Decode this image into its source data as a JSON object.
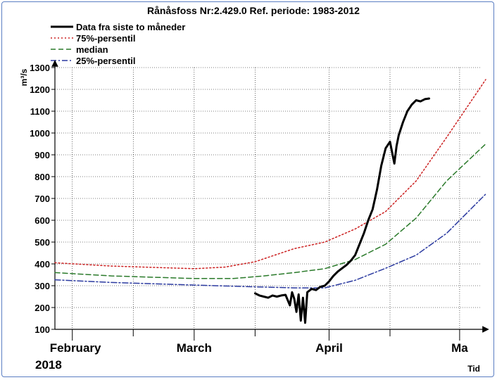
{
  "chart_data": {
    "type": "line",
    "title": "Rånåsfoss Nr:2.429.0 Ref. periode: 1983-2012",
    "ylabel": "m³/s",
    "xlabel": "Tid",
    "ylim": [
      100,
      1300
    ],
    "xlim": [
      "2018-01-28",
      "2018-05-07"
    ],
    "yticks": [
      "100",
      "200",
      "300",
      "400",
      "500",
      "600",
      "700",
      "800",
      "900",
      "1000",
      "1100",
      "1200",
      "1300"
    ],
    "month_labels": [
      {
        "label": "February",
        "date": "2018-02-01"
      },
      {
        "label": "March",
        "date": "2018-03-01"
      },
      {
        "label": "April",
        "date": "2018-04-01"
      },
      {
        "label": "Ma",
        "date": "2018-05-01"
      }
    ],
    "year_label": "2018",
    "legend": "top-left",
    "grid": true,
    "series": [
      {
        "name": "Data fra siste to måneder",
        "color": "#000000",
        "style": "solid",
        "points": [
          [
            "2018-03-15",
            265
          ],
          [
            "2018-03-16",
            255
          ],
          [
            "2018-03-17",
            250
          ],
          [
            "2018-03-18",
            245
          ],
          [
            "2018-03-19",
            255
          ],
          [
            "2018-03-20",
            250
          ],
          [
            "2018-03-21",
            255
          ],
          [
            "2018-03-22",
            258
          ],
          [
            "2018-03-23",
            210
          ],
          [
            "2018-03-23T12",
            270
          ],
          [
            "2018-03-24",
            240
          ],
          [
            "2018-03-24T12",
            180
          ],
          [
            "2018-03-25",
            260
          ],
          [
            "2018-03-25T12",
            140
          ],
          [
            "2018-03-26",
            245
          ],
          [
            "2018-03-26T12",
            130
          ],
          [
            "2018-03-27",
            270
          ],
          [
            "2018-03-28",
            285
          ],
          [
            "2018-03-29",
            280
          ],
          [
            "2018-03-30",
            295
          ],
          [
            "2018-03-31",
            300
          ],
          [
            "2018-04-01",
            320
          ],
          [
            "2018-04-02",
            345
          ],
          [
            "2018-04-03",
            365
          ],
          [
            "2018-04-04",
            380
          ],
          [
            "2018-04-05",
            395
          ],
          [
            "2018-04-06",
            415
          ],
          [
            "2018-04-07",
            440
          ],
          [
            "2018-04-08",
            490
          ],
          [
            "2018-04-09",
            540
          ],
          [
            "2018-04-10",
            600
          ],
          [
            "2018-04-11",
            650
          ],
          [
            "2018-04-12",
            740
          ],
          [
            "2018-04-13",
            850
          ],
          [
            "2018-04-14",
            930
          ],
          [
            "2018-04-15",
            960
          ],
          [
            "2018-04-16",
            860
          ],
          [
            "2018-04-16T12",
            940
          ],
          [
            "2018-04-17",
            990
          ],
          [
            "2018-04-18",
            1050
          ],
          [
            "2018-04-19",
            1100
          ],
          [
            "2018-04-20",
            1130
          ],
          [
            "2018-04-21",
            1150
          ],
          [
            "2018-04-22",
            1145
          ],
          [
            "2018-04-23",
            1155
          ],
          [
            "2018-04-24",
            1158
          ]
        ]
      },
      {
        "name": "75%-persentil",
        "color": "#cc2222",
        "style": "dotted",
        "points": [
          [
            "2018-01-28",
            405
          ],
          [
            "2018-02-10",
            390
          ],
          [
            "2018-03-01",
            378
          ],
          [
            "2018-03-08",
            385
          ],
          [
            "2018-03-15",
            410
          ],
          [
            "2018-03-24",
            470
          ],
          [
            "2018-03-31",
            500
          ],
          [
            "2018-04-07",
            560
          ],
          [
            "2018-04-14",
            640
          ],
          [
            "2018-04-21",
            780
          ],
          [
            "2018-04-28",
            980
          ],
          [
            "2018-05-07",
            1245
          ]
        ]
      },
      {
        "name": "median",
        "color": "#2a7a2a",
        "style": "dashed",
        "points": [
          [
            "2018-01-28",
            360
          ],
          [
            "2018-02-10",
            345
          ],
          [
            "2018-03-01",
            333
          ],
          [
            "2018-03-10",
            333
          ],
          [
            "2018-03-17",
            345
          ],
          [
            "2018-03-24",
            360
          ],
          [
            "2018-03-31",
            378
          ],
          [
            "2018-04-07",
            420
          ],
          [
            "2018-04-14",
            490
          ],
          [
            "2018-04-21",
            610
          ],
          [
            "2018-04-28",
            780
          ],
          [
            "2018-05-07",
            950
          ]
        ]
      },
      {
        "name": "25%-persentil",
        "color": "#2b3aa0",
        "style": "dashdot",
        "points": [
          [
            "2018-01-28",
            327
          ],
          [
            "2018-02-10",
            315
          ],
          [
            "2018-03-01",
            303
          ],
          [
            "2018-03-15",
            295
          ],
          [
            "2018-03-24",
            290
          ],
          [
            "2018-03-31",
            290
          ],
          [
            "2018-04-07",
            325
          ],
          [
            "2018-04-14",
            380
          ],
          [
            "2018-04-21",
            440
          ],
          [
            "2018-04-28",
            540
          ],
          [
            "2018-05-07",
            720
          ]
        ]
      }
    ]
  }
}
